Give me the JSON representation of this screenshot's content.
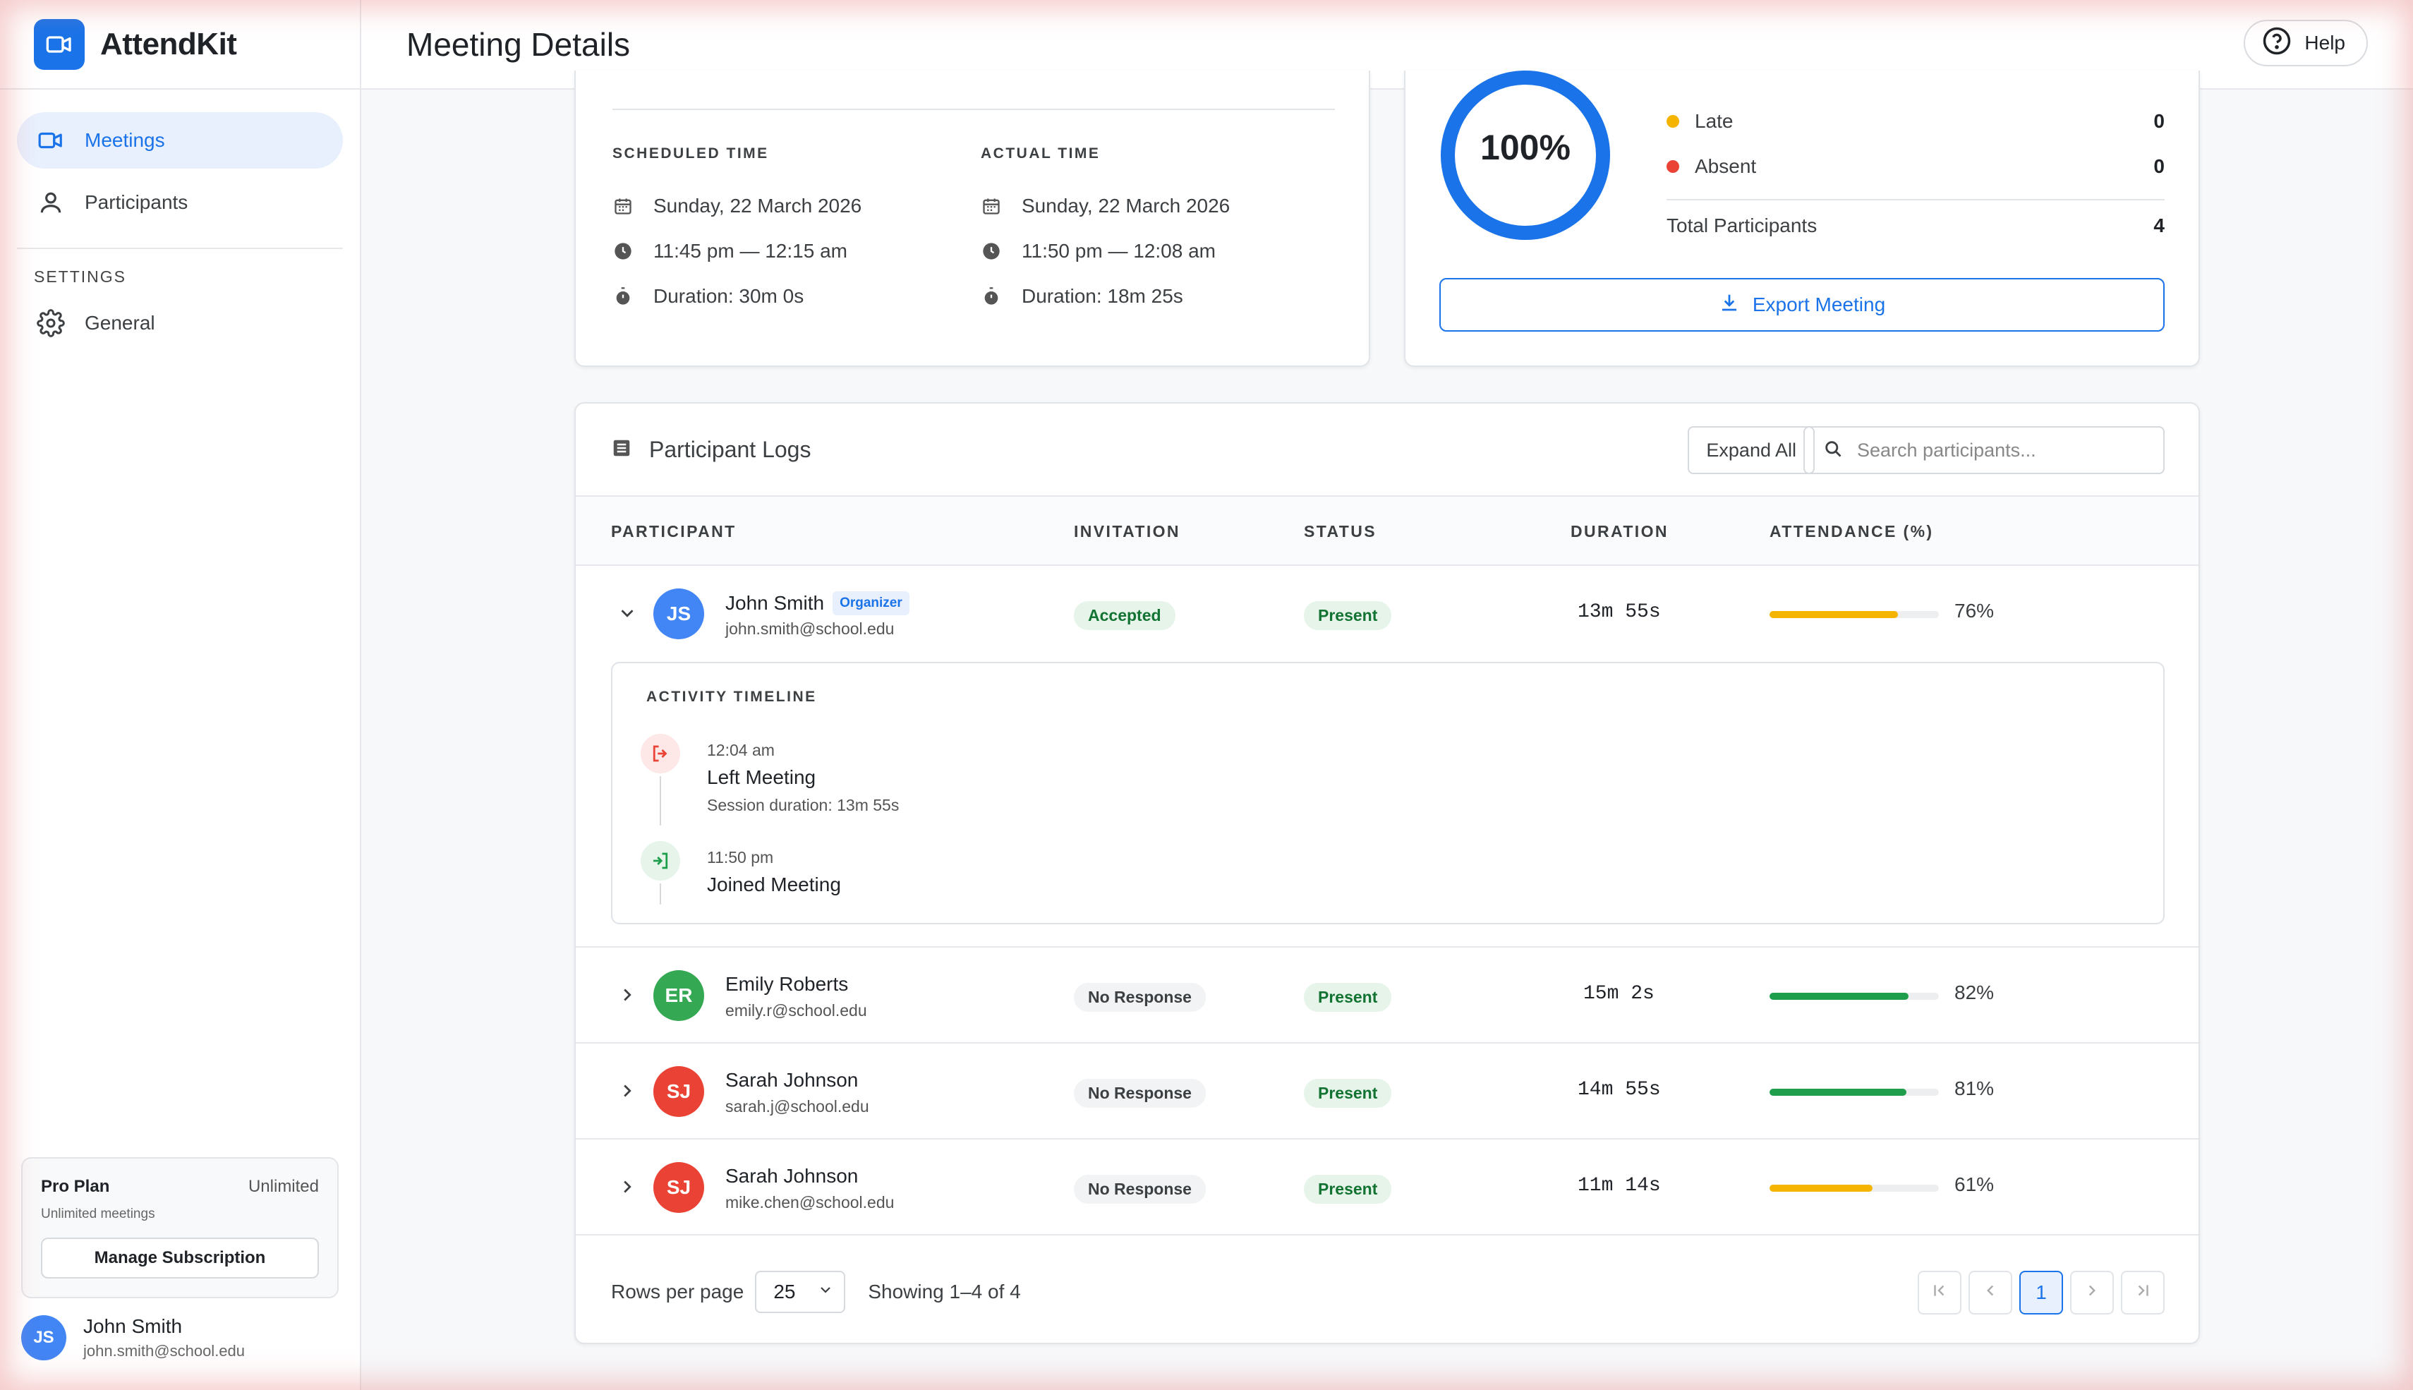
{
  "app": {
    "name": "AttendKit"
  },
  "sidebar": {
    "items": [
      {
        "label": "Meetings",
        "icon": "video-icon",
        "active": true
      },
      {
        "label": "Participants",
        "icon": "person-icon",
        "active": false
      }
    ],
    "settings_heading": "SETTINGS",
    "settings_items": [
      {
        "label": "General",
        "icon": "gear-icon"
      }
    ],
    "plan": {
      "name": "Pro Plan",
      "tag": "Unlimited",
      "subtitle": "Unlimited meetings",
      "manage_label": "Manage Subscription"
    },
    "user": {
      "initials": "JS",
      "name": "John Smith",
      "email": "john.smith@school.edu"
    }
  },
  "header": {
    "title": "Meeting Details",
    "help_label": "Help"
  },
  "times": {
    "scheduled": {
      "label": "SCHEDULED TIME",
      "date": "Sunday, 22 March 2026",
      "time": "11:45 pm — 12:15 am",
      "duration": "Duration: 30m 0s"
    },
    "actual": {
      "label": "ACTUAL TIME",
      "date": "Sunday, 22 March 2026",
      "time": "11:50 pm — 12:08 am",
      "duration": "Duration: 18m 25s"
    }
  },
  "stats": {
    "attendance_rate": 1.0,
    "ring_label": "100%",
    "late_label": "Late",
    "late_value": "0",
    "absent_label": "Absent",
    "absent_value": "0",
    "total_label": "Total Participants",
    "total_value": "4",
    "export_label": "Export Meeting",
    "colors": {
      "accent": "#1a73e8",
      "late": "#f4b400",
      "absent": "#ea4335"
    }
  },
  "logs": {
    "title": "Participant Logs",
    "expand_label": "Expand All",
    "search_placeholder": "Search participants...",
    "columns": {
      "participant": "PARTICIPANT",
      "invitation": "INVITATION",
      "status": "STATUS",
      "duration": "DURATION",
      "attendance": "ATTENDANCE (%)"
    },
    "rows": [
      {
        "initials": "JS",
        "name": "John Smith",
        "badge": "Organizer",
        "email": "john.smith@school.edu",
        "invitation": "Accepted",
        "status": "Present",
        "duration": "13m 55s",
        "attendance": "76%",
        "attendance_value": 0.76,
        "bar_color": "#f4b400",
        "avatar_color": "#4285f4",
        "expanded": true
      },
      {
        "initials": "ER",
        "name": "Emily Roberts",
        "badge": "",
        "email": "emily.r@school.edu",
        "invitation": "No Response",
        "status": "Present",
        "duration": "15m 2s",
        "attendance": "82%",
        "attendance_value": 0.82,
        "bar_color": "#1e9e4a",
        "avatar_color": "#34a853",
        "expanded": false
      },
      {
        "initials": "SJ",
        "name": "Sarah Johnson",
        "badge": "",
        "email": "sarah.j@school.edu",
        "invitation": "No Response",
        "status": "Present",
        "duration": "14m 55s",
        "attendance": "81%",
        "attendance_value": 0.81,
        "bar_color": "#1e9e4a",
        "avatar_color": "#ea4335",
        "expanded": false
      },
      {
        "initials": "SJ",
        "name": "Sarah Johnson",
        "badge": "",
        "email": "mike.chen@school.edu",
        "invitation": "No Response",
        "status": "Present",
        "duration": "11m 14s",
        "attendance": "61%",
        "attendance_value": 0.61,
        "bar_color": "#f4b400",
        "avatar_color": "#ea4335",
        "expanded": false
      }
    ],
    "timeline": {
      "title": "ACTIVITY TIMELINE",
      "events": [
        {
          "time": "12:04 am",
          "event": "Left Meeting",
          "note": "Session duration: 13m 55s",
          "icon": "logout-icon"
        },
        {
          "time": "11:50 pm",
          "event": "Joined Meeting",
          "note": "",
          "icon": "login-icon"
        }
      ]
    },
    "pagination": {
      "rows_label": "Rows per page",
      "rows_value": "25",
      "showing": "Showing 1–4 of 4",
      "current_page": "1"
    }
  }
}
